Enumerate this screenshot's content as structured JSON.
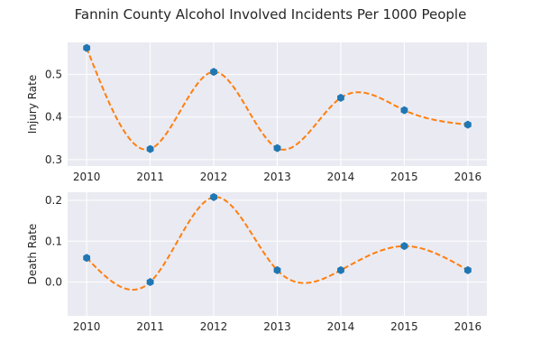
{
  "chart_data": {
    "title": "Fannin County Alcohol Involved Incidents Per 1000 People",
    "colors": {
      "background": "#eaeaf2",
      "grid": "#ffffff",
      "marker": "#1f77b4",
      "curve": "#ff7f0e"
    },
    "panels": [
      {
        "type": "scatter",
        "ylabel": "Injury Rate",
        "x": [
          2010,
          2011,
          2012,
          2013,
          2014,
          2015,
          2016
        ],
        "values": [
          0.562,
          0.325,
          0.506,
          0.327,
          0.445,
          0.416,
          0.382
        ],
        "xlim": [
          2009.7,
          2016.3
        ],
        "ylim": [
          0.285,
          0.575
        ],
        "yticks": [
          0.3,
          0.4,
          0.5
        ],
        "ytick_labels": [
          "0.3",
          "0.4",
          "0.5"
        ],
        "xticks": [
          2010,
          2011,
          2012,
          2013,
          2014,
          2015,
          2016
        ],
        "xtick_labels": [
          "2010",
          "2011",
          "2012",
          "2013",
          "2014",
          "2015",
          "2016"
        ],
        "curve": "dashed smooth interpolation"
      },
      {
        "type": "scatter",
        "ylabel": "Death Rate",
        "x": [
          2010,
          2011,
          2012,
          2013,
          2014,
          2015,
          2016
        ],
        "values": [
          0.059,
          0.0,
          0.208,
          0.029,
          0.029,
          0.088,
          0.029
        ],
        "xlim": [
          2009.7,
          2016.3
        ],
        "ylim": [
          -0.083,
          0.22
        ],
        "yticks": [
          0.0,
          0.1,
          0.2
        ],
        "ytick_labels": [
          "0.0",
          "0.1",
          "0.2"
        ],
        "xticks": [
          2010,
          2011,
          2012,
          2013,
          2014,
          2015,
          2016
        ],
        "xtick_labels": [
          "2010",
          "2011",
          "2012",
          "2013",
          "2014",
          "2015",
          "2016"
        ],
        "curve": "dashed smooth interpolation"
      }
    ]
  }
}
